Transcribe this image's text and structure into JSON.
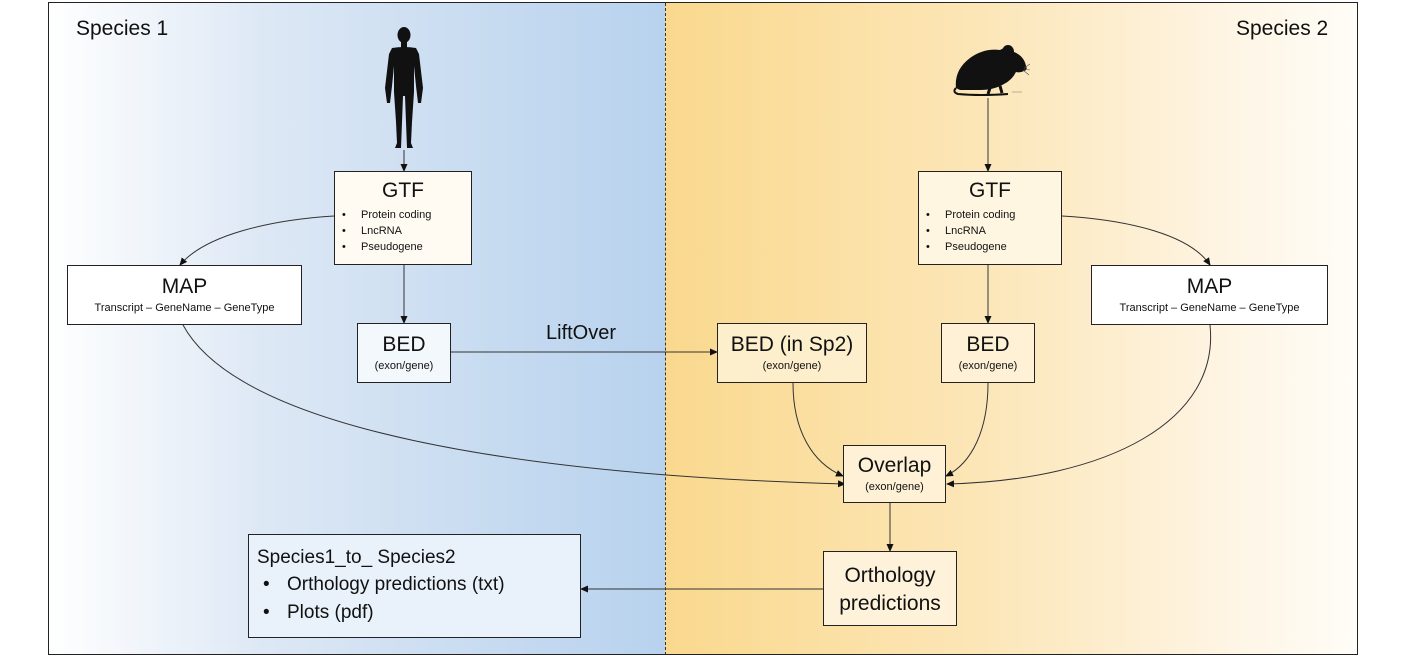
{
  "species_left": "Species 1",
  "species_right": "Species 2",
  "icons": {
    "left_organism": "human-silhouette-icon",
    "right_organism": "mouse-silhouette-icon"
  },
  "colors": {
    "left_panel": "#c5daf0",
    "right_panel": "#fad98e"
  },
  "gtf_left": {
    "title": "GTF",
    "items": [
      "Protein coding",
      "LncRNA",
      "Pseudogene"
    ]
  },
  "gtf_right": {
    "title": "GTF",
    "items": [
      "Protein coding",
      "LncRNA",
      "Pseudogene"
    ]
  },
  "map_left": {
    "title": "MAP",
    "subtitle": "Transcript – GeneName – GeneType"
  },
  "map_right": {
    "title": "MAP",
    "subtitle": "Transcript – GeneName – GeneType"
  },
  "bed_left": {
    "title": "BED",
    "subtitle": "(exon/gene)"
  },
  "bed_lifted": {
    "title": "BED (in Sp2)",
    "subtitle": "(exon/gene)"
  },
  "bed_right": {
    "title": "BED",
    "subtitle": "(exon/gene)"
  },
  "liftover_label": "LiftOver",
  "overlap": {
    "title": "Overlap",
    "subtitle": "(exon/gene)"
  },
  "orthology": {
    "line1": "Orthology",
    "line2": "predictions"
  },
  "output": {
    "title": "Species1_to_ Species2",
    "items": [
      "Orthology predictions (txt)",
      "Plots (pdf)"
    ]
  }
}
